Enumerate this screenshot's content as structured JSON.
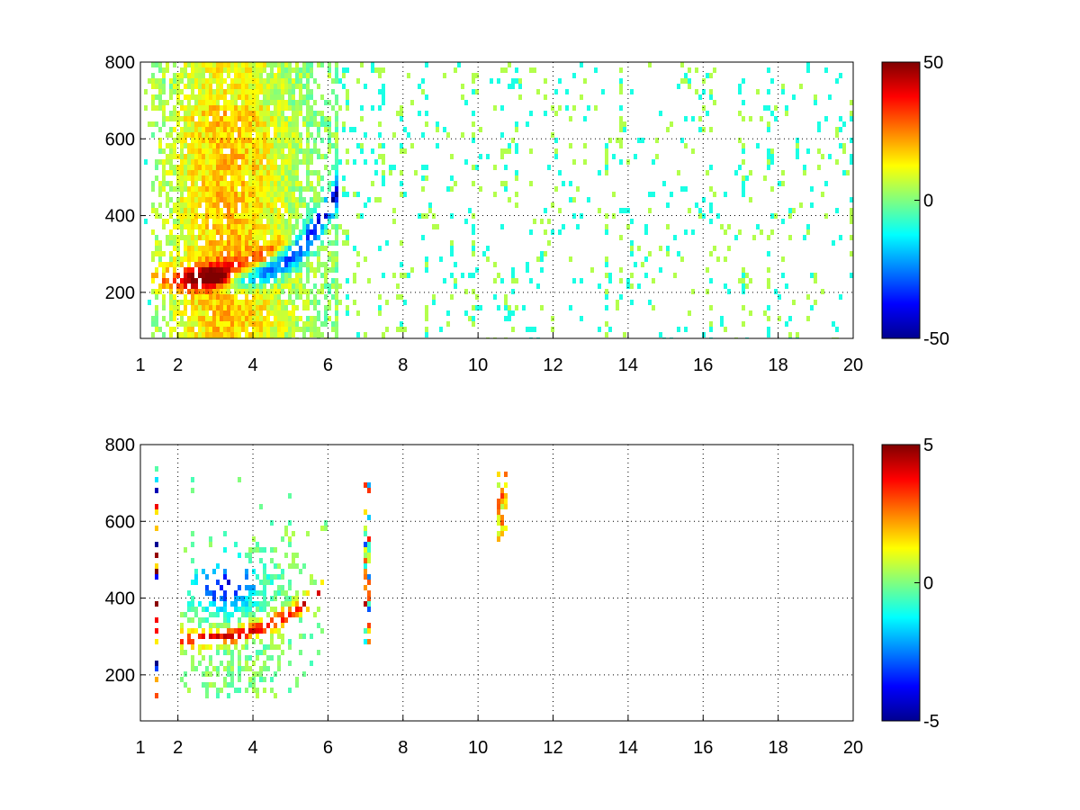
{
  "chart_data": [
    {
      "type": "heatmap",
      "title": "",
      "xlabel": "",
      "ylabel": "",
      "xlim": [
        1,
        20
      ],
      "ylim": [
        80,
        800
      ],
      "xticks": [
        1,
        2,
        4,
        6,
        8,
        10,
        12,
        14,
        16,
        18,
        20
      ],
      "xtick_labels": [
        "1",
        "2",
        "4",
        "6",
        "8",
        "10",
        "12",
        "14",
        "16",
        "18",
        "20"
      ],
      "yticks": [
        200,
        400,
        600,
        800
      ],
      "ytick_labels": [
        "200",
        "400",
        "600",
        "800"
      ],
      "grid": true,
      "colormap": "jet",
      "colorbar": {
        "clim": [
          -50,
          50
        ],
        "tick_values": [
          50,
          0,
          -50
        ],
        "tick_labels": [
          "50",
          "0",
          "-50"
        ]
      },
      "features": [
        {
          "description": "positive ridge",
          "x": [
            2.3,
            2.8,
            3.2,
            3.6,
            4.0,
            4.4
          ],
          "y": [
            240,
            245,
            255,
            270,
            285,
            300
          ],
          "value": 45
        },
        {
          "description": "negative ridge",
          "x": [
            3.8,
            4.2,
            4.6,
            5.0,
            5.4,
            5.8
          ],
          "y": [
            265,
            285,
            315,
            350,
            420,
            520
          ],
          "value": -40
        },
        {
          "description": "sparse near-zero noise",
          "x_range": [
            6,
            20
          ],
          "y_range": [
            80,
            800
          ],
          "value": 0
        }
      ]
    },
    {
      "type": "heatmap",
      "title": "",
      "xlabel": "",
      "ylabel": "",
      "xlim": [
        1,
        20
      ],
      "ylim": [
        80,
        800
      ],
      "xticks": [
        1,
        2,
        4,
        6,
        8,
        10,
        12,
        14,
        16,
        18,
        20
      ],
      "xtick_labels": [
        "1",
        "2",
        "4",
        "6",
        "8",
        "10",
        "12",
        "14",
        "16",
        "18",
        "20"
      ],
      "yticks": [
        200,
        400,
        600,
        800
      ],
      "ytick_labels": [
        "200",
        "400",
        "600",
        "800"
      ],
      "grid": true,
      "colormap": "jet",
      "colorbar": {
        "clim": [
          -5,
          5
        ],
        "tick_values": [
          5,
          0,
          -5
        ],
        "tick_labels": [
          "5",
          "0",
          "-5"
        ]
      },
      "features": [
        {
          "description": "positive ridge",
          "x": [
            2.2,
            2.6,
            3.0,
            3.4,
            3.8,
            4.2
          ],
          "y": [
            295,
            300,
            300,
            305,
            315,
            325
          ],
          "value": 4
        },
        {
          "description": "negative cluster",
          "x_range": [
            2.5,
            4.0
          ],
          "y_range": [
            380,
            500
          ],
          "value": -3.5
        },
        {
          "description": "vertical streaks",
          "x": [
            7.0,
            10.6
          ],
          "y_range": [
            270,
            720
          ],
          "value": 2
        }
      ]
    }
  ]
}
